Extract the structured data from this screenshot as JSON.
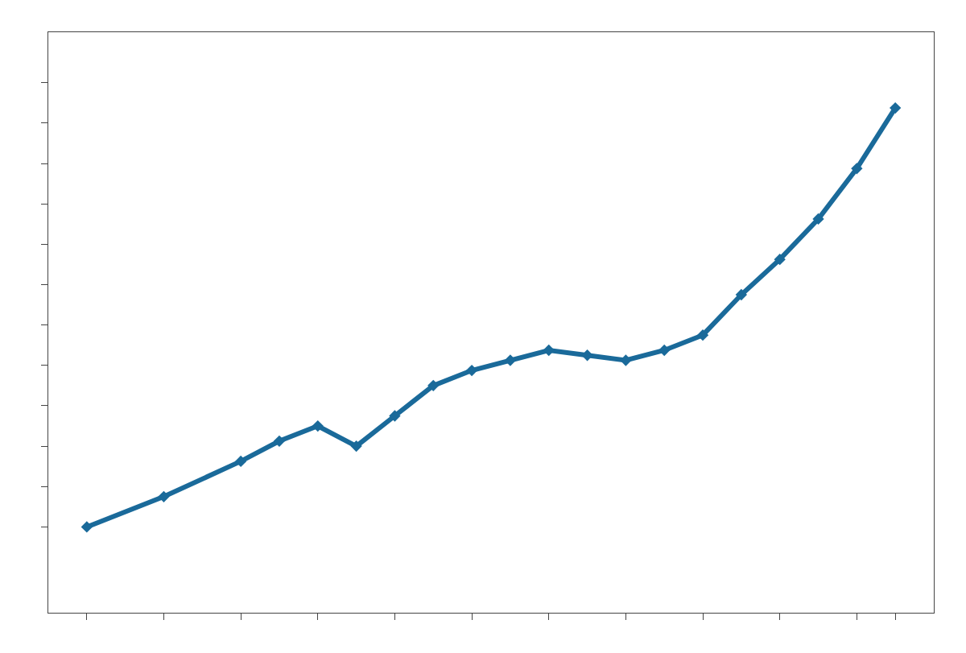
{
  "chart_data": {
    "type": "line",
    "x": [
      2002,
      2004,
      2006,
      2007,
      2008,
      2009,
      2010,
      2011,
      2012,
      2013,
      2014,
      2015,
      2016,
      2017,
      2018,
      2019,
      2020,
      2021,
      2022,
      2023
    ],
    "values": [
      72000,
      78000,
      85000,
      89000,
      92000,
      88000,
      94000,
      100000,
      103000,
      105000,
      107000,
      106000,
      105000,
      107000,
      110000,
      118000,
      125000,
      133000,
      143000,
      155000
    ],
    "color": "#1a6a9a",
    "marker": "diamond",
    "xlim": [
      2001,
      2024
    ],
    "ylim": [
      55000,
      170000
    ],
    "xticks": [
      2002,
      2004,
      2006,
      2008,
      2010,
      2012,
      2014,
      2016,
      2018,
      2020,
      2022,
      2023
    ],
    "yticks": [
      72000,
      80000,
      88000,
      96000,
      104000,
      112000,
      120000,
      128000,
      136000,
      144000,
      152000,
      160000
    ],
    "tick_labels": false,
    "grid": false
  }
}
